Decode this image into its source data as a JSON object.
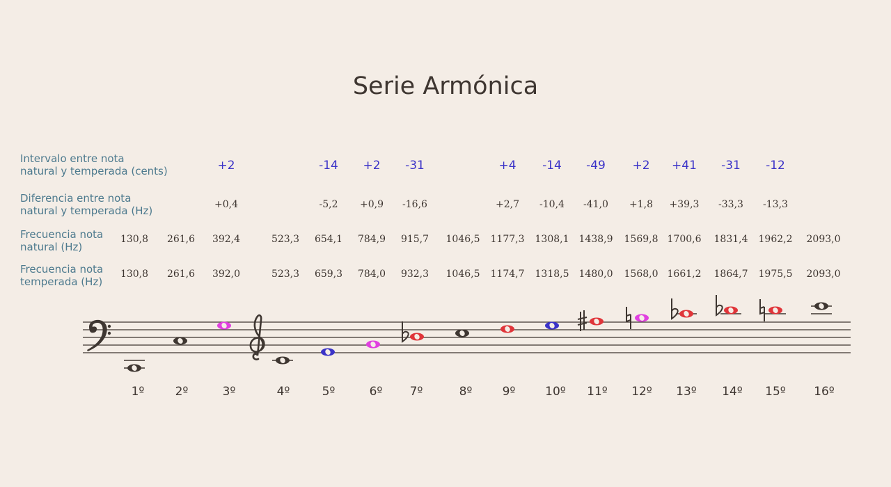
{
  "title": "Serie Armónica",
  "row_labels": {
    "cents": [
      "Intervalo entre nota",
      "natural y temperada (cents)"
    ],
    "diff": [
      "Diferencia entre nota",
      "natural y temperada (Hz)"
    ],
    "natural": [
      "Frecuencia nota",
      "natural (Hz)"
    ],
    "tempered": [
      "Frecuencia nota",
      "temperada (Hz)"
    ]
  },
  "colors": {
    "black": "#3e3631",
    "magenta": "#e040e0",
    "blue": "#3b33c8",
    "red": "#e0353a",
    "cents_text": "#3b33c8",
    "label_text": "#4d7a8e"
  },
  "harmonics": [
    {
      "ordinal": "1º",
      "cents": "",
      "diff": "",
      "natural": "130,8",
      "tempered": "130,8",
      "color": "black",
      "accidental": ""
    },
    {
      "ordinal": "2º",
      "cents": "",
      "diff": "",
      "natural": "261,6",
      "tempered": "261,6",
      "color": "black",
      "accidental": ""
    },
    {
      "ordinal": "3º",
      "cents": "+2",
      "diff": "+0,4",
      "natural": "392,4",
      "tempered": "392,0",
      "color": "magenta",
      "accidental": ""
    },
    {
      "ordinal": "4º",
      "cents": "",
      "diff": "",
      "natural": "523,3",
      "tempered": "523,3",
      "color": "black",
      "accidental": ""
    },
    {
      "ordinal": "5º",
      "cents": "-14",
      "diff": "-5,2",
      "natural": "654,1",
      "tempered": "659,3",
      "color": "blue",
      "accidental": ""
    },
    {
      "ordinal": "6º",
      "cents": "+2",
      "diff": "+0,9",
      "natural": "784,9",
      "tempered": "784,0",
      "color": "magenta",
      "accidental": ""
    },
    {
      "ordinal": "7º",
      "cents": "-31",
      "diff": "-16,6",
      "natural": "915,7",
      "tempered": "932,3",
      "color": "red",
      "accidental": "flat"
    },
    {
      "ordinal": "8º",
      "cents": "",
      "diff": "",
      "natural": "1046,5",
      "tempered": "1046,5",
      "color": "black",
      "accidental": ""
    },
    {
      "ordinal": "9º",
      "cents": "+4",
      "diff": "+2,7",
      "natural": "1177,3",
      "tempered": "1174,7",
      "color": "red",
      "accidental": ""
    },
    {
      "ordinal": "10º",
      "cents": "-14",
      "diff": "-10,4",
      "natural": "1308,1",
      "tempered": "1318,5",
      "color": "blue",
      "accidental": ""
    },
    {
      "ordinal": "11º",
      "cents": "-49",
      "diff": "-41,0",
      "natural": "1438,9",
      "tempered": "1480,0",
      "color": "red",
      "accidental": "sharp"
    },
    {
      "ordinal": "12º",
      "cents": "+2",
      "diff": "+1,8",
      "natural": "1569,8",
      "tempered": "1568,0",
      "color": "magenta",
      "accidental": "natural"
    },
    {
      "ordinal": "13º",
      "cents": "+41",
      "diff": "+39,3",
      "natural": "1700,6",
      "tempered": "1661,2",
      "color": "red",
      "accidental": "flat"
    },
    {
      "ordinal": "14º",
      "cents": "-31",
      "diff": "-33,3",
      "natural": "1831,4",
      "tempered": "1864,7",
      "color": "red",
      "accidental": "flat"
    },
    {
      "ordinal": "15º",
      "cents": "-12",
      "diff": "-13,3",
      "natural": "1962,2",
      "tempered": "1975,5",
      "color": "red",
      "accidental": "natural"
    },
    {
      "ordinal": "16º",
      "cents": "",
      "diff": "",
      "natural": "2093,0",
      "tempered": "2093,0",
      "color": "black",
      "accidental": ""
    }
  ]
}
